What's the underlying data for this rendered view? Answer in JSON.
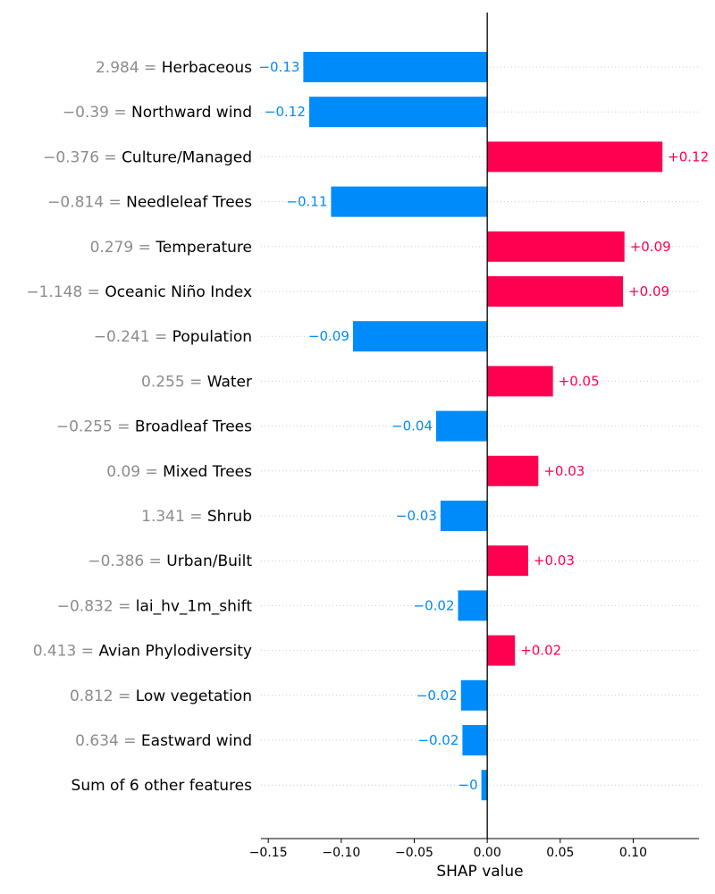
{
  "chart_data": {
    "type": "bar",
    "orientation": "horizontal",
    "xlabel": "SHAP value",
    "xlim": [
      -0.155,
      0.145
    ],
    "xticks": [
      {
        "value": -0.15,
        "label": "−0.15"
      },
      {
        "value": -0.1,
        "label": "−0.10"
      },
      {
        "value": -0.05,
        "label": "−0.05"
      },
      {
        "value": 0.0,
        "label": "0.00"
      },
      {
        "value": 0.05,
        "label": "0.05"
      },
      {
        "value": 0.1,
        "label": "0.10"
      }
    ],
    "grid": "horizontal dotted",
    "colors": {
      "positive": "#ff0051",
      "negative": "#008bfb"
    },
    "features": [
      {
        "name": "Herbaceous",
        "feature_value": "2.984",
        "shap": -0.126,
        "label": "−0.13"
      },
      {
        "name": "Northward wind",
        "feature_value": "−0.39",
        "shap": -0.122,
        "label": "−0.12"
      },
      {
        "name": "Culture/Managed",
        "feature_value": "−0.376",
        "shap": 0.12,
        "label": "+0.12"
      },
      {
        "name": "Needleleaf Trees",
        "feature_value": "−0.814",
        "shap": -0.107,
        "label": "−0.11"
      },
      {
        "name": "Temperature",
        "feature_value": "0.279",
        "shap": 0.094,
        "label": "+0.09"
      },
      {
        "name": "Oceanic Niño Index",
        "feature_value": "−1.148",
        "shap": 0.093,
        "label": "+0.09"
      },
      {
        "name": "Population",
        "feature_value": "−0.241",
        "shap": -0.092,
        "label": "−0.09"
      },
      {
        "name": "Water",
        "feature_value": "0.255",
        "shap": 0.045,
        "label": "+0.05"
      },
      {
        "name": "Broadleaf Trees",
        "feature_value": "−0.255",
        "shap": -0.035,
        "label": "−0.04"
      },
      {
        "name": "Mixed Trees",
        "feature_value": "0.09",
        "shap": 0.035,
        "label": "+0.03"
      },
      {
        "name": "Shrub",
        "feature_value": "1.341",
        "shap": -0.032,
        "label": "−0.03"
      },
      {
        "name": "Urban/Built",
        "feature_value": "−0.386",
        "shap": 0.028,
        "label": "+0.03"
      },
      {
        "name": "lai_hv_1m_shift",
        "feature_value": "−0.832",
        "shap": -0.02,
        "label": "−0.02"
      },
      {
        "name": "Avian Phylodiversity",
        "feature_value": "0.413",
        "shap": 0.019,
        "label": "+0.02"
      },
      {
        "name": "Low vegetation",
        "feature_value": "0.812",
        "shap": -0.018,
        "label": "−0.02"
      },
      {
        "name": "Eastward wind",
        "feature_value": "0.634",
        "shap": -0.017,
        "label": "−0.02"
      },
      {
        "name": "Sum of 6 other features",
        "feature_value": "",
        "shap": -0.004,
        "label": "−0"
      }
    ]
  }
}
